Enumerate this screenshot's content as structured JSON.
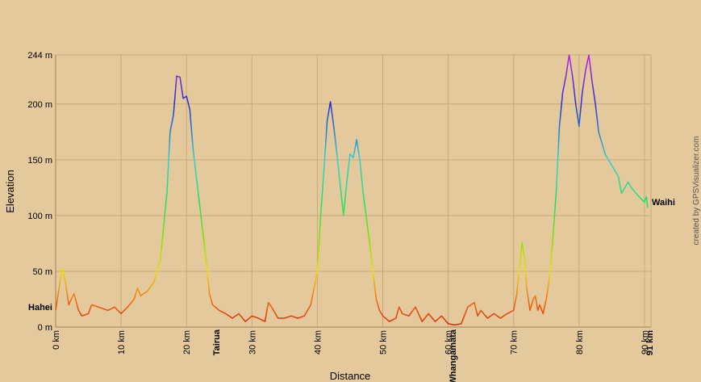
{
  "chart_data": {
    "type": "line",
    "x_label": "Distance",
    "y_label": "Elevation",
    "credit": "created by GPSVisualizer.com",
    "annotations": [
      "Hahei",
      "Tairua",
      "Whangamata",
      "Waihi"
    ],
    "xlim": [
      0,
      91
    ],
    "ylim": [
      0,
      244
    ],
    "xticks": [
      {
        "value": 0,
        "label": "0 km"
      },
      {
        "value": 10,
        "label": "10 km"
      },
      {
        "value": 20,
        "label": "20 km"
      },
      {
        "value": 30,
        "label": "30 km"
      },
      {
        "value": 40,
        "label": "40 km"
      },
      {
        "value": 50,
        "label": "50 km"
      },
      {
        "value": 60,
        "label": "60 km"
      },
      {
        "value": 70,
        "label": "70 km"
      },
      {
        "value": 80,
        "label": "80 km"
      },
      {
        "value": 90,
        "label": "90 km"
      },
      {
        "value": 91,
        "label": "91 km"
      }
    ],
    "yticks": [
      {
        "value": 0,
        "label": "0 m"
      },
      {
        "value": 50,
        "label": "50 m"
      },
      {
        "value": 100,
        "label": "100 m"
      },
      {
        "value": 150,
        "label": "150 m"
      },
      {
        "value": 200,
        "label": "200 m"
      },
      {
        "value": 244,
        "label": "244 m"
      }
    ],
    "grid": true,
    "color_stops": [
      {
        "value": 0,
        "color": "#e02000"
      },
      {
        "value": 25,
        "color": "#f07010"
      },
      {
        "value": 50,
        "color": "#e8e000"
      },
      {
        "value": 80,
        "color": "#80e000"
      },
      {
        "value": 110,
        "color": "#20e060"
      },
      {
        "value": 150,
        "color": "#30d0d0"
      },
      {
        "value": 200,
        "color": "#2030d0"
      },
      {
        "value": 244,
        "color": "#c020e0"
      }
    ],
    "x": [
      0,
      1,
      1.5,
      2,
      2.8,
      3.5,
      4,
      5,
      5.5,
      6.5,
      8,
      9,
      10,
      11,
      12,
      12.5,
      13,
      14,
      15,
      16,
      17,
      17.5,
      18,
      18.5,
      19,
      19.5,
      20,
      20.5,
      21,
      22,
      23,
      23.5,
      24,
      25,
      26,
      27,
      28,
      29,
      30,
      31,
      32,
      32.5,
      33,
      34,
      35,
      36,
      37,
      38,
      39,
      40,
      40.5,
      41,
      41.5,
      42,
      42.5,
      43,
      44,
      44.5,
      45,
      45.5,
      46,
      46.5,
      47,
      48,
      49,
      49.5,
      50,
      51,
      52,
      52.5,
      53,
      54,
      55,
      56,
      57,
      58,
      59,
      60,
      61,
      62,
      63,
      64,
      64.5,
      65,
      66,
      67,
      68,
      69,
      70,
      70.5,
      71,
      71.3,
      71.7,
      72,
      72.5,
      73,
      73.3,
      73.7,
      74,
      74.5,
      75,
      75.5,
      76,
      76.5,
      77,
      77.5,
      78,
      78.5,
      79,
      79.5,
      80,
      80.5,
      81,
      81.5,
      82,
      82.5,
      83,
      84,
      85,
      86,
      86.5,
      87,
      87.5,
      88,
      89,
      90,
      90.3,
      90.5
    ],
    "values": [
      15,
      53,
      40,
      20,
      30,
      15,
      10,
      12,
      20,
      18,
      15,
      18,
      12,
      18,
      25,
      35,
      28,
      32,
      40,
      60,
      120,
      175,
      190,
      225,
      224,
      205,
      207,
      195,
      160,
      110,
      60,
      30,
      20,
      15,
      12,
      8,
      12,
      5,
      10,
      8,
      5,
      22,
      18,
      8,
      8,
      10,
      8,
      10,
      20,
      50,
      100,
      140,
      185,
      202,
      180,
      155,
      100,
      130,
      155,
      152,
      168,
      150,
      120,
      75,
      25,
      15,
      10,
      5,
      8,
      18,
      12,
      10,
      18,
      5,
      12,
      5,
      10,
      3,
      2,
      3,
      18,
      22,
      10,
      15,
      8,
      12,
      8,
      12,
      15,
      30,
      60,
      76,
      60,
      35,
      15,
      25,
      28,
      15,
      20,
      12,
      25,
      45,
      80,
      120,
      180,
      210,
      225,
      244,
      225,
      200,
      180,
      210,
      230,
      244,
      220,
      200,
      175,
      155,
      145,
      135,
      120,
      125,
      130,
      125,
      118,
      112,
      117,
      107
    ]
  }
}
